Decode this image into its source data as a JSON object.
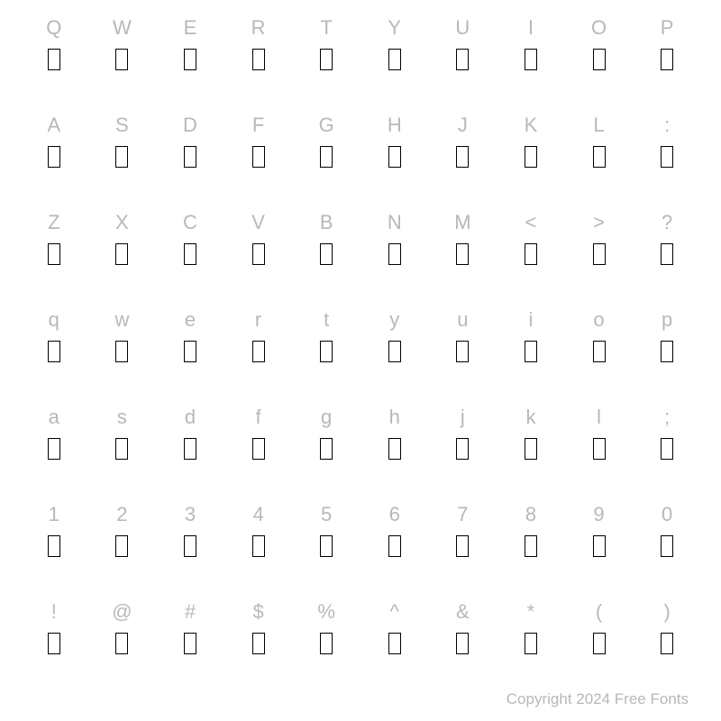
{
  "rows": [
    [
      "Q",
      "W",
      "E",
      "R",
      "T",
      "Y",
      "U",
      "I",
      "O",
      "P"
    ],
    [
      "A",
      "S",
      "D",
      "F",
      "G",
      "H",
      "J",
      "K",
      "L",
      ":"
    ],
    [
      "Z",
      "X",
      "C",
      "V",
      "B",
      "N",
      "M",
      "<",
      ">",
      "?"
    ],
    [
      "q",
      "w",
      "e",
      "r",
      "t",
      "y",
      "u",
      "i",
      "o",
      "p"
    ],
    [
      "a",
      "s",
      "d",
      "f",
      "g",
      "h",
      "j",
      "k",
      "l",
      ";"
    ],
    [
      "1",
      "2",
      "3",
      "4",
      "5",
      "6",
      "7",
      "8",
      "9",
      "0"
    ],
    [
      "!",
      "@",
      "#",
      "$",
      "%",
      "^",
      "&",
      "*",
      "(",
      ")"
    ]
  ],
  "copyright": "Copyright 2024 Free Fonts",
  "styling": {
    "label_color": "#b8b8b8",
    "label_fontsize": 22,
    "glyph_border_color": "#000000",
    "glyph_border_width": 1.8,
    "glyph_width": 14,
    "glyph_height": 24,
    "background_color": "#ffffff",
    "columns": 10,
    "row_count": 7,
    "copyright_color": "#b8b8b8",
    "copyright_fontsize": 17
  }
}
